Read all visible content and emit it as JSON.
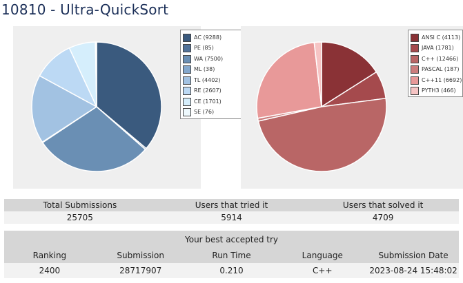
{
  "page": {
    "title": "10810 - Ultra-QuickSort"
  },
  "status_chart": {
    "legend": [
      {
        "label": "AC (9288)",
        "value": 9288,
        "color": "#3a5a7e"
      },
      {
        "label": "PE (85)",
        "value": 85,
        "color": "#52739a"
      },
      {
        "label": "WA (7500)",
        "value": 7500,
        "color": "#6a8fb4"
      },
      {
        "label": "ML (38)",
        "value": 38,
        "color": "#84a8cd"
      },
      {
        "label": "TL (4402)",
        "value": 4402,
        "color": "#a2c2e2"
      },
      {
        "label": "RE (2607)",
        "value": 2607,
        "color": "#bcd9f4"
      },
      {
        "label": "CE (1701)",
        "value": 1701,
        "color": "#d5eefc"
      },
      {
        "label": "SE (76)",
        "value": 76,
        "color": "#eef9fd"
      }
    ]
  },
  "language_chart": {
    "legend": [
      {
        "label": "ANSI C (4113)",
        "value": 4113,
        "color": "#8a3236"
      },
      {
        "label": "JAVA (1781)",
        "value": 1781,
        "color": "#a54a4d"
      },
      {
        "label": "C++ (12466)",
        "value": 12466,
        "color": "#b96666"
      },
      {
        "label": "PASCAL (187)",
        "value": 187,
        "color": "#cc7d7d"
      },
      {
        "label": "C++11 (6692)",
        "value": 6692,
        "color": "#e89999"
      },
      {
        "label": "PYTH3 (466)",
        "value": 466,
        "color": "#f6c4c4"
      }
    ]
  },
  "summary": {
    "headers": {
      "total": "Total Submissions",
      "tried": "Users that tried it",
      "solved": "Users that solved it"
    },
    "values": {
      "total": "25705",
      "tried": "5914",
      "solved": "4709"
    }
  },
  "best_try": {
    "caption": "Your best accepted try",
    "headers": {
      "ranking": "Ranking",
      "submission": "Submission",
      "run_time": "Run Time",
      "language": "Language",
      "date": "Submission Date"
    },
    "values": {
      "ranking": "2400",
      "submission": "28717907",
      "run_time": "0.210",
      "language": "C++",
      "date": "2023-08-24 15:48:02"
    }
  }
}
